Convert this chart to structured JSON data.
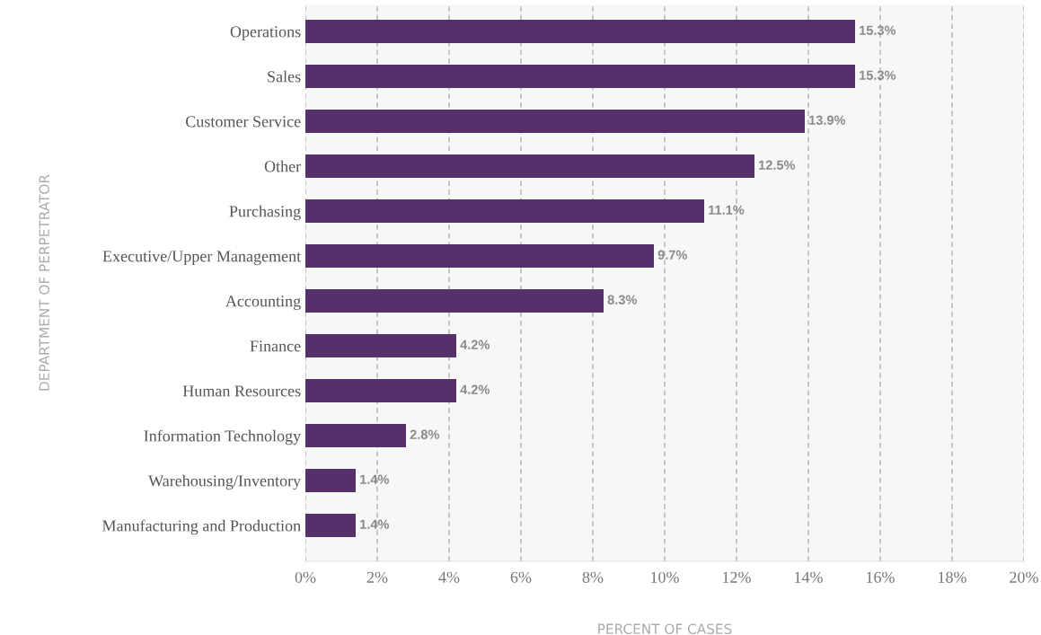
{
  "chart_data": {
    "type": "bar",
    "orientation": "horizontal",
    "xlabel": "PERCENT OF CASES",
    "ylabel": "DEPARTMENT OF PERPETRATOR",
    "categories": [
      "Operations",
      "Sales",
      "Customer Service",
      "Other",
      "Purchasing",
      "Executive/Upper Management",
      "Accounting",
      "Finance",
      "Human Resources",
      "Information Technology",
      "Warehousing/Inventory",
      "Manufacturing and Production"
    ],
    "values": [
      15.3,
      15.3,
      13.9,
      12.5,
      11.1,
      9.7,
      8.3,
      4.2,
      4.2,
      2.8,
      1.4,
      1.4
    ],
    "value_labels": [
      "15.3%",
      "15.3%",
      "13.9%",
      "12.5%",
      "11.1%",
      "9.7%",
      "8.3%",
      "4.2%",
      "4.2%",
      "2.8%",
      "1.4%",
      "1.4%"
    ],
    "color": "#55306a",
    "xlim": [
      0,
      20
    ],
    "xticks": [
      {
        "value": 0,
        "label": "0%"
      },
      {
        "value": 2,
        "label": "2%"
      },
      {
        "value": 4,
        "label": "4%"
      },
      {
        "value": 6,
        "label": "6%"
      },
      {
        "value": 8,
        "label": "8%"
      },
      {
        "value": 10,
        "label": "10%"
      },
      {
        "value": 12,
        "label": "12%"
      },
      {
        "value": 14,
        "label": "14%"
      },
      {
        "value": 16,
        "label": "16%"
      },
      {
        "value": 18,
        "label": "18%"
      },
      {
        "value": 20,
        "label": "20%"
      }
    ],
    "grid": "x",
    "legend": false
  }
}
